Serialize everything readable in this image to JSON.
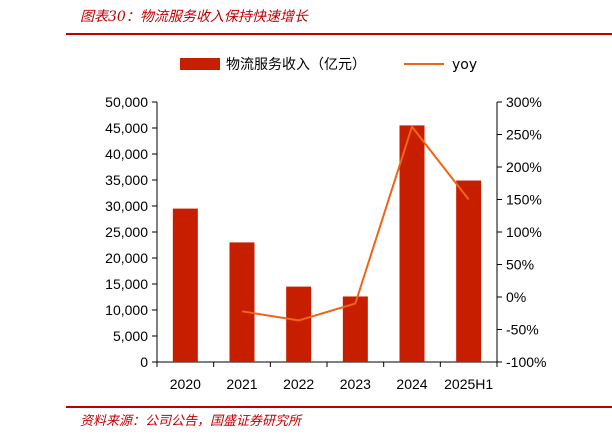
{
  "header": {
    "title": "图表30：物流服务收入保持快速增长"
  },
  "footer": {
    "source": "资料来源：公司公告，国盛证券研究所"
  },
  "colors": {
    "bar": "#c81e00",
    "line": "#f06418",
    "accent": "#c00000"
  },
  "chart_data": {
    "type": "bar",
    "categories": [
      "2020",
      "2021",
      "2022",
      "2023",
      "2024",
      "2025H1"
    ],
    "series": [
      {
        "name": "物流服务收入（亿元）",
        "type": "bar",
        "axis": "left",
        "values": [
          29500,
          23000,
          14500,
          12600,
          45500,
          34900
        ]
      },
      {
        "name": "yoy",
        "type": "line",
        "axis": "right",
        "values": [
          null,
          -22,
          -36,
          -10,
          262,
          150
        ]
      }
    ],
    "y_left": {
      "ylim": [
        0,
        50000
      ],
      "ticks": [
        0,
        5000,
        10000,
        15000,
        20000,
        25000,
        30000,
        35000,
        40000,
        45000,
        50000
      ],
      "tick_labels": [
        "0",
        "5,000",
        "10,000",
        "15,000",
        "20,000",
        "25,000",
        "30,000",
        "35,000",
        "40,000",
        "45,000",
        "50,000"
      ]
    },
    "y_right": {
      "ylim": [
        -100,
        300
      ],
      "ticks": [
        -100,
        -50,
        0,
        50,
        100,
        150,
        200,
        250,
        300
      ],
      "tick_labels": [
        "-100%",
        "-50%",
        "0%",
        "50%",
        "100%",
        "150%",
        "200%",
        "250%",
        "300%"
      ]
    },
    "legend_position": "top",
    "grid": false
  }
}
